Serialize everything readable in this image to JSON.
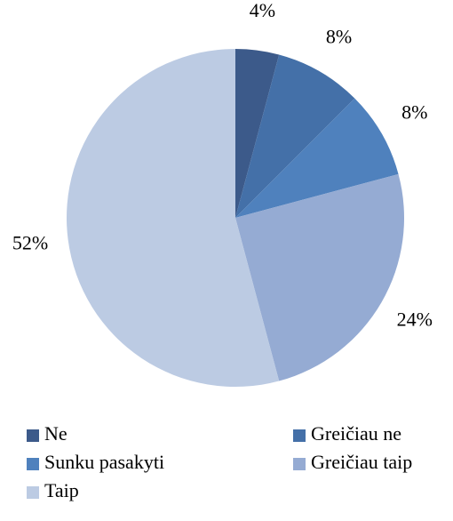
{
  "chart_data": {
    "type": "pie",
    "categories": [
      "Ne",
      "Greičiau ne",
      "Sunku pasakyti",
      "Greičiau taip",
      "Taip"
    ],
    "values": [
      4,
      8,
      8,
      24,
      52
    ],
    "value_labels": [
      "4%",
      "8%",
      "8%",
      "24%",
      "52%"
    ],
    "colors": [
      "#3c5a8a",
      "#4470a8",
      "#4f81bd",
      "#95abd3",
      "#bccbe3"
    ],
    "legend": "bottom"
  }
}
